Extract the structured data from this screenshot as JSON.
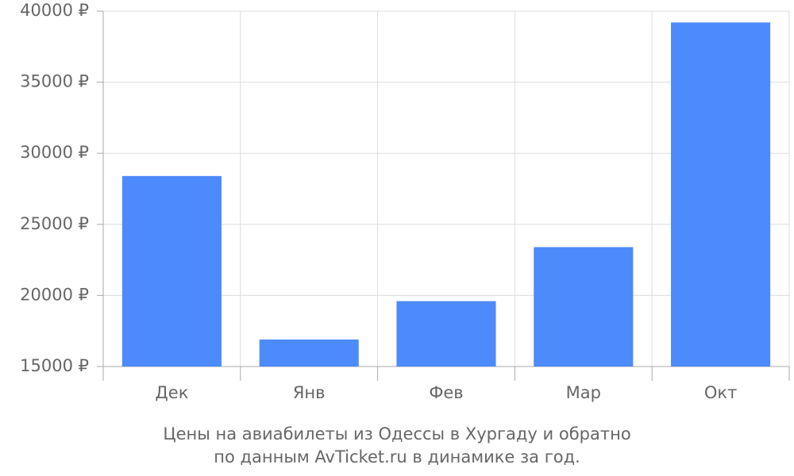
{
  "chart_data": {
    "type": "bar",
    "title": [
      "Цены на авиабилеты из Одессы в Хургаду и обратно",
      "по данным AvTicket.ru в динамике за год."
    ],
    "categories": [
      "Дек",
      "Янв",
      "Фев",
      "Мар",
      "Окт"
    ],
    "values": [
      28400,
      16900,
      19600,
      23400,
      39200
    ],
    "color": "#4d8afc",
    "ylim": [
      15000,
      40000
    ],
    "yticks": [
      {
        "value": 15000,
        "label": "15000 ₽"
      },
      {
        "value": 20000,
        "label": "20000 ₽"
      },
      {
        "value": 25000,
        "label": "25000 ₽"
      },
      {
        "value": 30000,
        "label": "30000 ₽"
      },
      {
        "value": 35000,
        "label": "35000 ₽"
      },
      {
        "value": 40000,
        "label": "40000 ₽"
      }
    ],
    "grid": true
  }
}
